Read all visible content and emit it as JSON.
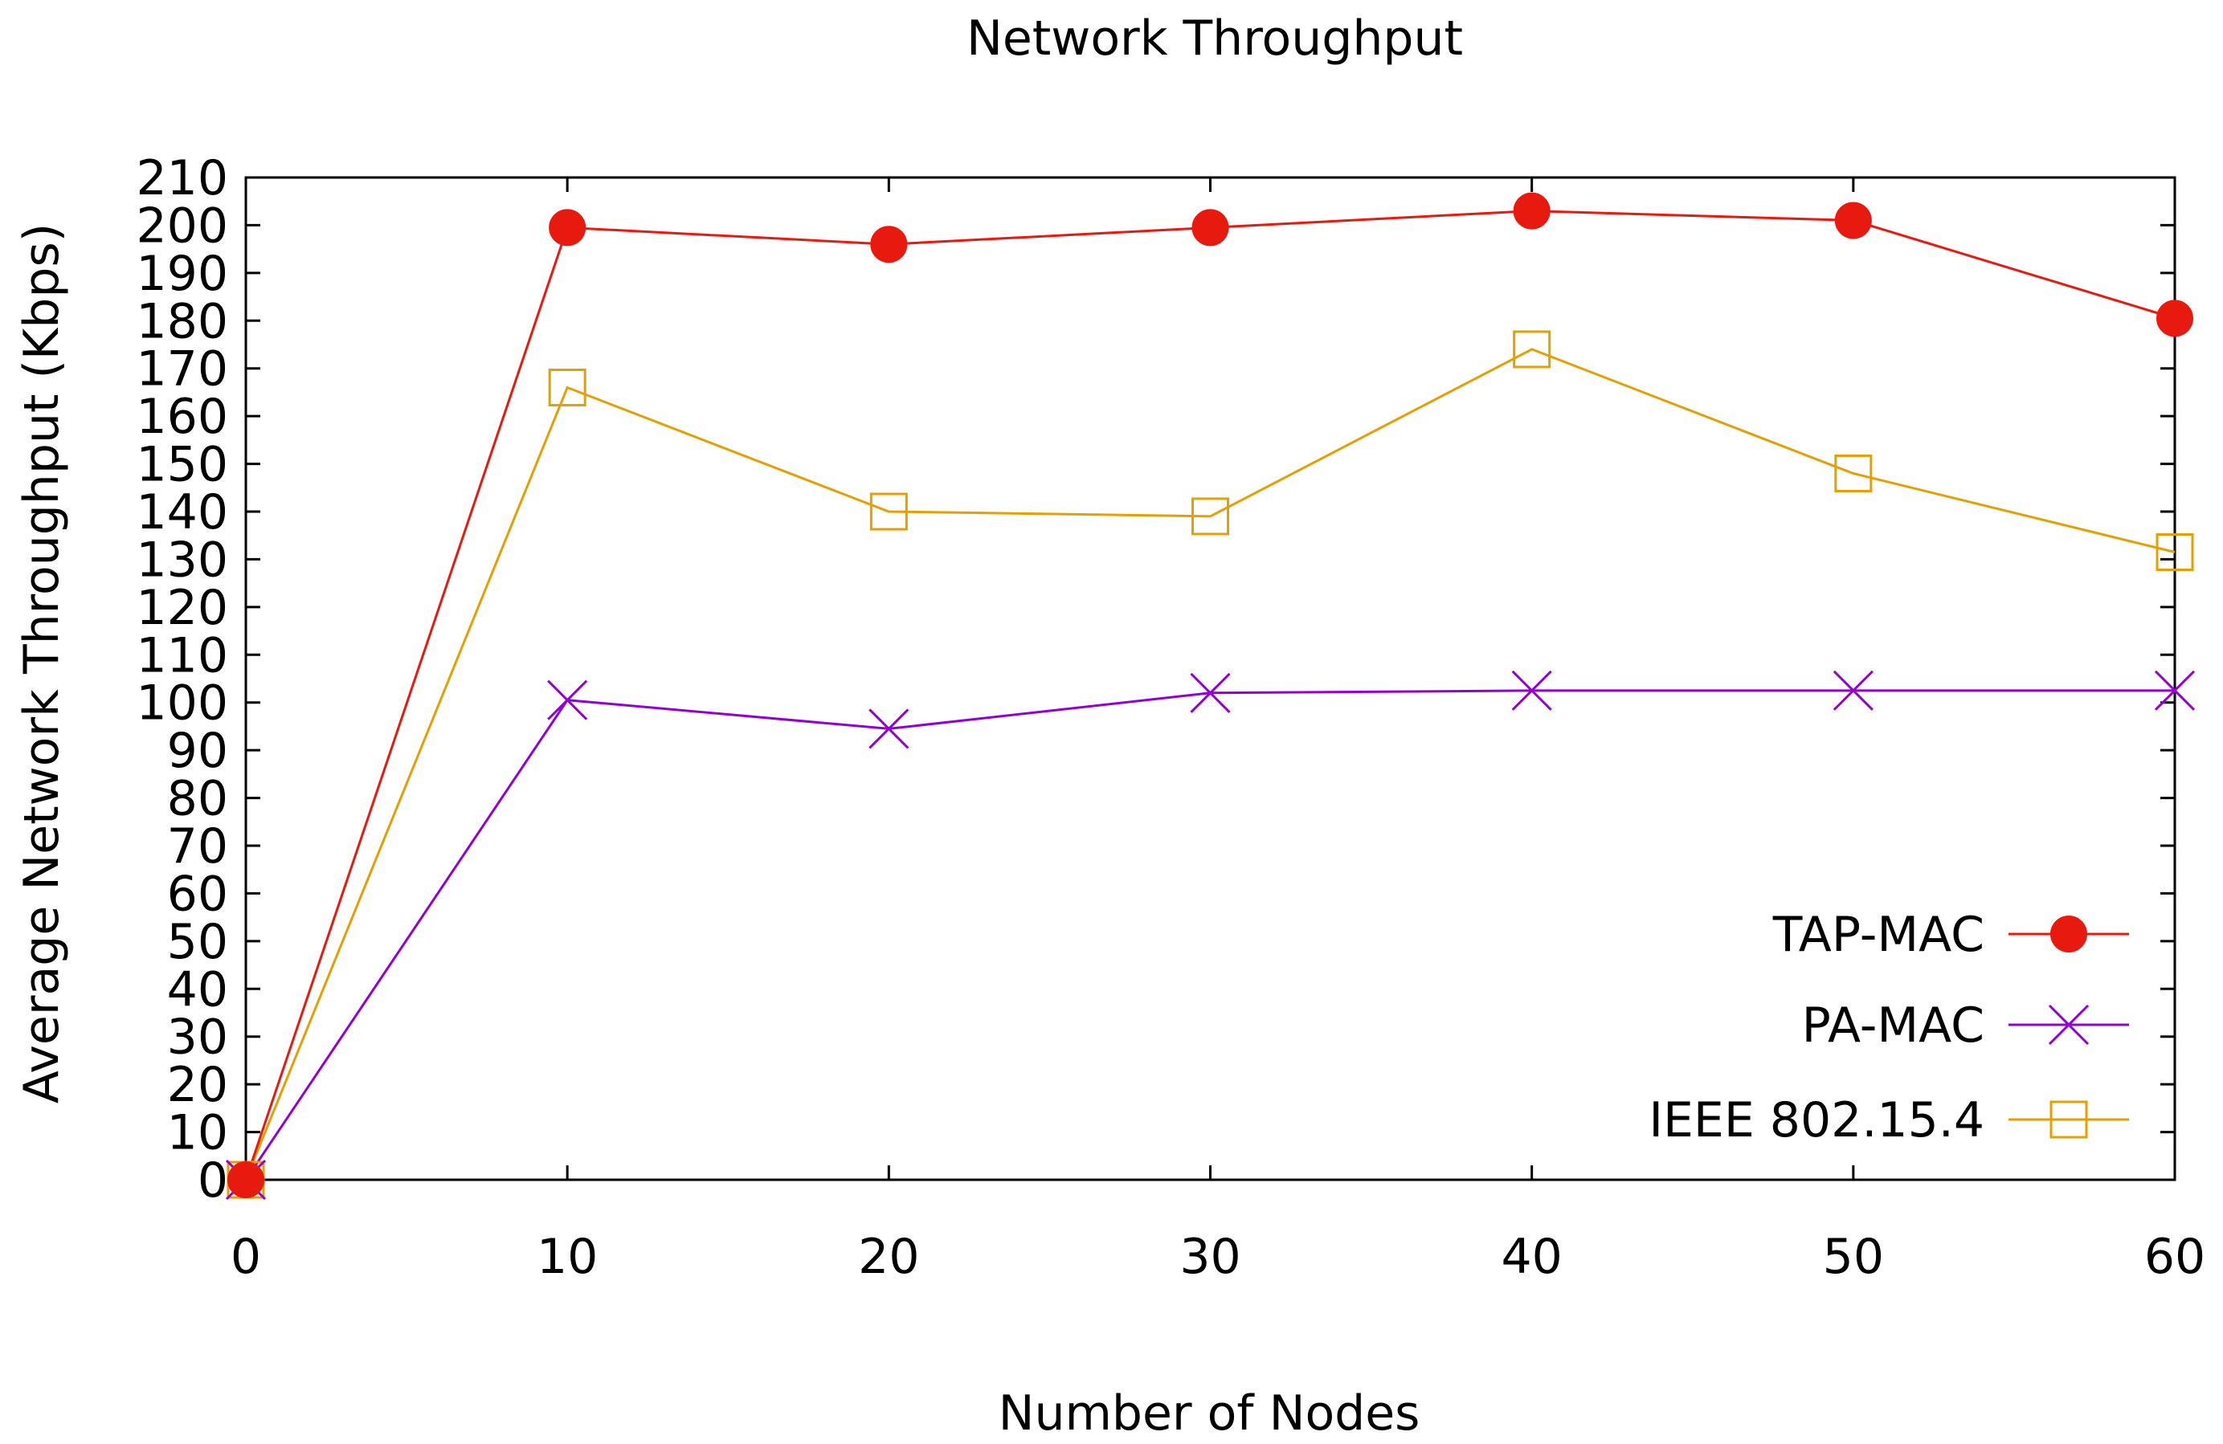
{
  "chart_data": {
    "type": "line",
    "title": "Network Throughput",
    "xlabel": "Number of Nodes",
    "ylabel": "Average Network Throughput (Kbps)",
    "xlim": [
      0,
      60
    ],
    "ylim": [
      0,
      210
    ],
    "x_ticks": [
      0,
      10,
      20,
      30,
      40,
      50,
      60
    ],
    "y_ticks": [
      0,
      10,
      20,
      30,
      40,
      50,
      60,
      70,
      80,
      90,
      100,
      110,
      120,
      130,
      140,
      150,
      160,
      170,
      180,
      190,
      200,
      210
    ],
    "grid": false,
    "legend_position": "bottom-right",
    "x": [
      0,
      10,
      20,
      30,
      40,
      50,
      60
    ],
    "series": [
      {
        "name": "TAP-MAC",
        "color": "#e8190e",
        "marker": "filled-circle",
        "values": [
          0,
          199.5,
          196,
          199.5,
          203,
          201,
          180.5
        ]
      },
      {
        "name": "PA-MAC",
        "color": "#9400d3",
        "marker": "x-cross",
        "values": [
          0,
          100.5,
          94.5,
          102,
          102.5,
          102.5,
          102.5
        ]
      },
      {
        "name": "IEEE 802.15.4",
        "color": "#e69f00",
        "marker": "open-square",
        "values": [
          0,
          166,
          140,
          139,
          174,
          148,
          131.5
        ]
      }
    ]
  }
}
